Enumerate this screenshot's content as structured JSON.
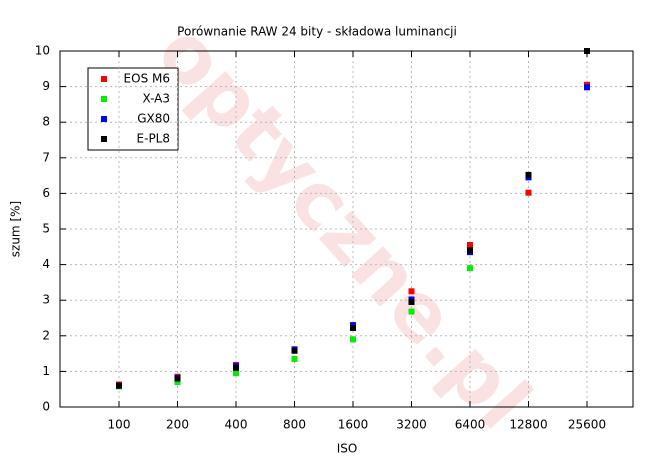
{
  "chart_data": {
    "type": "scatter",
    "title": "Porównanie RAW 24 bity - składowa luminancji",
    "watermark": "optyczne.pl",
    "x_label": "ISO",
    "y_label": "szum [%]",
    "categories": [
      "100",
      "200",
      "400",
      "800",
      "1600",
      "3200",
      "6400",
      "12800",
      "25600"
    ],
    "ylim": [
      0,
      10
    ],
    "yticks": [
      0,
      1,
      2,
      3,
      4,
      5,
      6,
      7,
      8,
      9,
      10
    ],
    "grid": true,
    "legend": "top-left",
    "series": [
      {
        "name": "EOS M6",
        "color": "#ff0000",
        "values": [
          0.63,
          0.85,
          1.18,
          1.6,
          2.28,
          3.25,
          4.55,
          6.02,
          9.05
        ]
      },
      {
        "name": "X-A3",
        "color": "#00ee00",
        "values": [
          0.58,
          0.7,
          0.95,
          1.35,
          1.9,
          2.68,
          3.9,
          null,
          null
        ]
      },
      {
        "name": "GX80",
        "color": "#0000ff",
        "values": [
          0.6,
          0.82,
          1.15,
          1.62,
          2.3,
          3.02,
          4.35,
          6.45,
          8.98
        ]
      },
      {
        "name": "E-PL8",
        "color": "#000000",
        "values": [
          0.6,
          0.8,
          1.1,
          1.58,
          2.22,
          2.95,
          4.4,
          6.52,
          10.0
        ]
      }
    ]
  }
}
